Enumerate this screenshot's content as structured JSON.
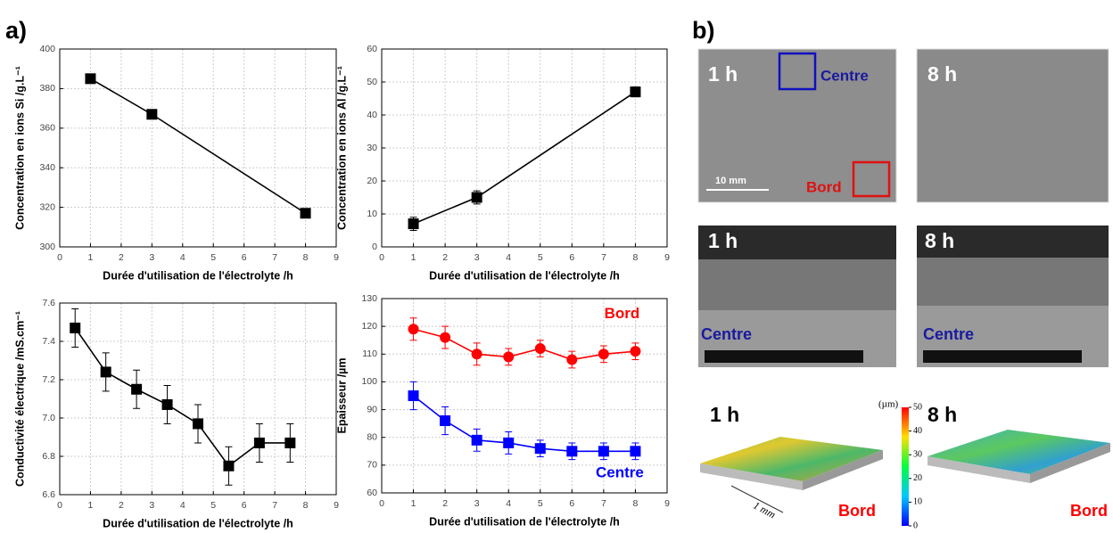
{
  "panel_labels": [
    "a)",
    "b)"
  ],
  "chart_data": [
    {
      "type": "line",
      "x_label": "Durée d'utilisation de l'électrolyte /h",
      "y_label": "Concentration en ions Si /g.L⁻¹",
      "x": [
        1,
        3,
        8
      ],
      "values": [
        385,
        367,
        317
      ],
      "color": "#000000",
      "marker": "square",
      "xlim": [
        0,
        9
      ],
      "xticks": [
        0,
        1,
        2,
        3,
        4,
        5,
        6,
        7,
        8,
        9
      ],
      "ylim": [
        300,
        400
      ],
      "yticks": [
        300,
        320,
        340,
        360,
        380,
        400
      ],
      "grid": true
    },
    {
      "type": "line",
      "x_label": "Durée d'utilisation de l'électrolyte /h",
      "y_label": "Concentration en ions Al /g.L⁻¹",
      "x": [
        1,
        3,
        8
      ],
      "values": [
        7,
        15,
        47
      ],
      "errors": [
        2,
        2,
        1.5
      ],
      "color": "#000000",
      "marker": "square",
      "xlim": [
        0,
        9
      ],
      "xticks": [
        0,
        1,
        2,
        3,
        4,
        5,
        6,
        7,
        8,
        9
      ],
      "ylim": [
        0,
        60
      ],
      "yticks": [
        0,
        10,
        20,
        30,
        40,
        50,
        60
      ],
      "grid": true
    },
    {
      "type": "line",
      "x_label": "Durée d'utilisation de l'électrolyte /h",
      "y_label": "Conductivité électrique /mS.cm⁻¹",
      "x": [
        0.5,
        1.5,
        2.5,
        3.5,
        4.5,
        5.5,
        6.5,
        7.5
      ],
      "values": [
        7.47,
        7.24,
        7.15,
        7.07,
        6.97,
        6.75,
        6.87,
        6.87
      ],
      "errors": [
        0.1,
        0.1,
        0.1,
        0.1,
        0.1,
        0.1,
        0.1,
        0.1
      ],
      "color": "#000000",
      "marker": "square",
      "xlim": [
        0,
        9
      ],
      "xticks": [
        0,
        1,
        2,
        3,
        4,
        5,
        6,
        7,
        8,
        9
      ],
      "ylim": [
        6.6,
        7.6
      ],
      "yticks": [
        6.6,
        6.8,
        {
          "value": 7,
          "label": "7.0"
        },
        7.2,
        7.4,
        7.6
      ],
      "grid": true
    },
    {
      "type": "line",
      "x_label": "Durée d'utilisation de l'électrolyte /h",
      "y_label": "Epaisseur /µm",
      "x": [
        1,
        2,
        3,
        4,
        5,
        6,
        7,
        8
      ],
      "series": [
        {
          "name": "Bord",
          "color": "#ff0000",
          "marker": "circle",
          "values": [
            119,
            116,
            110,
            109,
            112,
            108,
            110,
            111
          ],
          "errors": [
            4,
            4,
            4,
            3,
            3,
            3,
            3,
            3
          ]
        },
        {
          "name": "Centre",
          "color": "#0000ff",
          "marker": "square",
          "values": [
            95,
            86,
            79,
            78,
            76,
            75,
            75,
            75
          ],
          "errors": [
            5,
            5,
            4,
            4,
            3,
            3,
            3,
            3
          ]
        }
      ],
      "xlim": [
        0,
        9
      ],
      "xticks": [
        0,
        1,
        2,
        3,
        4,
        5,
        6,
        7,
        8,
        9
      ],
      "ylim": [
        60,
        130
      ],
      "yticks": [
        60,
        70,
        80,
        90,
        100,
        110,
        120,
        130
      ],
      "grid": true
    }
  ],
  "panel_b": {
    "optical": [
      {
        "time": "1 h",
        "zone_centre": "Centre",
        "zone_bord": "Bord",
        "scale": "10 mm"
      },
      {
        "time": "8 h"
      }
    ],
    "sem": [
      {
        "time": "1 h",
        "zone": "Centre"
      },
      {
        "time": "8 h",
        "zone": "Centre"
      }
    ],
    "profilometry": [
      {
        "time": "1 h",
        "zone": "Bord",
        "scale": "1 mm"
      },
      {
        "time": "8 h",
        "zone": "Bord"
      }
    ],
    "colorbar": {
      "unit": "(µm)",
      "ticks": [
        0,
        10,
        20,
        30,
        40,
        50
      ]
    }
  }
}
